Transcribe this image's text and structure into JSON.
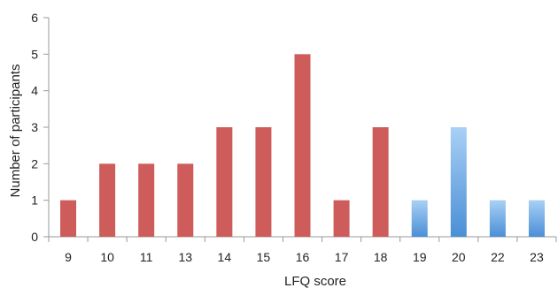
{
  "chart_data": {
    "type": "bar",
    "title": "",
    "xlabel": "LFQ score",
    "ylabel": "Number of participants",
    "categories": [
      "9",
      "10",
      "11",
      "13",
      "14",
      "15",
      "16",
      "17",
      "18",
      "19",
      "20",
      "22",
      "23"
    ],
    "values": [
      1,
      2,
      2,
      2,
      3,
      3,
      5,
      1,
      3,
      1,
      3,
      1,
      1
    ],
    "groups": [
      "red",
      "red",
      "red",
      "red",
      "red",
      "red",
      "red",
      "red",
      "red",
      "blue",
      "blue",
      "blue",
      "blue"
    ],
    "ylim": [
      0,
      6
    ],
    "yticks": [
      "0",
      "1",
      "2",
      "3",
      "4",
      "5",
      "6"
    ],
    "grid": false,
    "legend": "none",
    "colors": {
      "red": "#cd5c5a",
      "blue_top": "#a9d0f5",
      "blue_bottom": "#4a8fd6",
      "axis": "#999999"
    }
  }
}
